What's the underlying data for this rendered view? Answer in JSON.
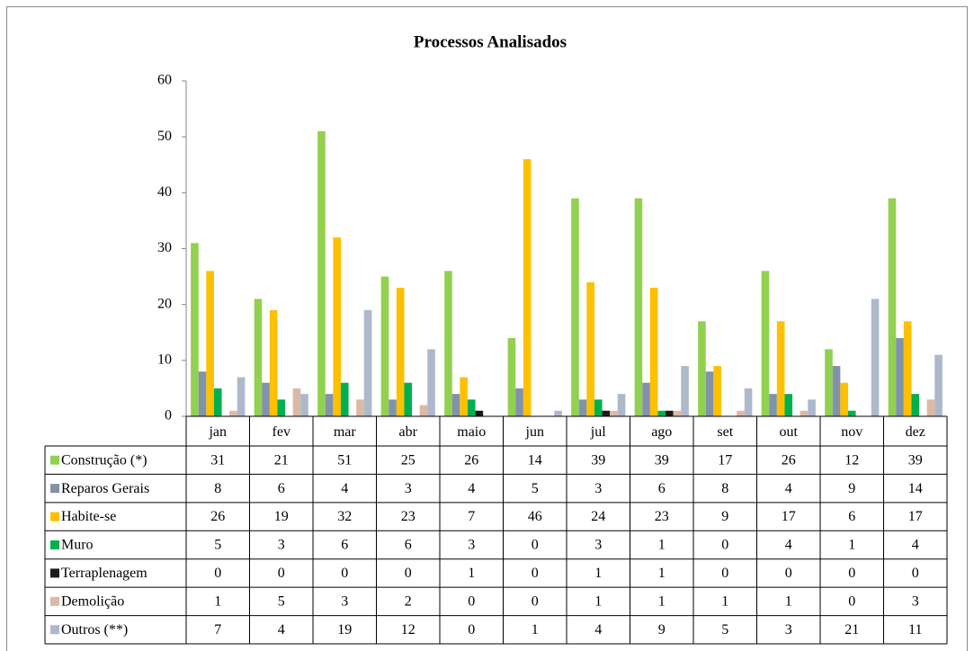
{
  "chart_data": {
    "type": "bar",
    "title": "Processos Analisados",
    "categories": [
      "jan",
      "fev",
      "mar",
      "abr",
      "maio",
      "jun",
      "jul",
      "ago",
      "set",
      "out",
      "nov",
      "dez"
    ],
    "series": [
      {
        "name": "Construção (*)",
        "color": "#92d050",
        "values": [
          31,
          21,
          51,
          25,
          26,
          14,
          39,
          39,
          17,
          26,
          12,
          39
        ]
      },
      {
        "name": "Reparos Gerais",
        "color": "#8093aa",
        "values": [
          8,
          6,
          4,
          3,
          4,
          5,
          3,
          6,
          8,
          4,
          9,
          14
        ]
      },
      {
        "name": "Habite-se",
        "color": "#ffc000",
        "values": [
          26,
          19,
          32,
          23,
          7,
          46,
          24,
          23,
          9,
          17,
          6,
          17
        ]
      },
      {
        "name": "Muro",
        "color": "#00b050",
        "values": [
          5,
          3,
          6,
          6,
          3,
          0,
          3,
          1,
          0,
          4,
          1,
          4
        ]
      },
      {
        "name": "Terraplenagem",
        "color": "#1a1a1a",
        "values": [
          0,
          0,
          0,
          0,
          1,
          0,
          1,
          1,
          0,
          0,
          0,
          0
        ]
      },
      {
        "name": "Demolição",
        "color": "#dcb9a6",
        "values": [
          1,
          5,
          3,
          2,
          0,
          0,
          1,
          1,
          1,
          1,
          0,
          3
        ]
      },
      {
        "name": "Outros (**)",
        "color": "#adb9ca",
        "values": [
          7,
          4,
          19,
          12,
          0,
          1,
          4,
          9,
          5,
          3,
          21,
          11
        ]
      }
    ],
    "ylim": [
      0,
      60
    ],
    "yticks": [
      0,
      10,
      20,
      30,
      40,
      50,
      60
    ],
    "grid": false
  }
}
